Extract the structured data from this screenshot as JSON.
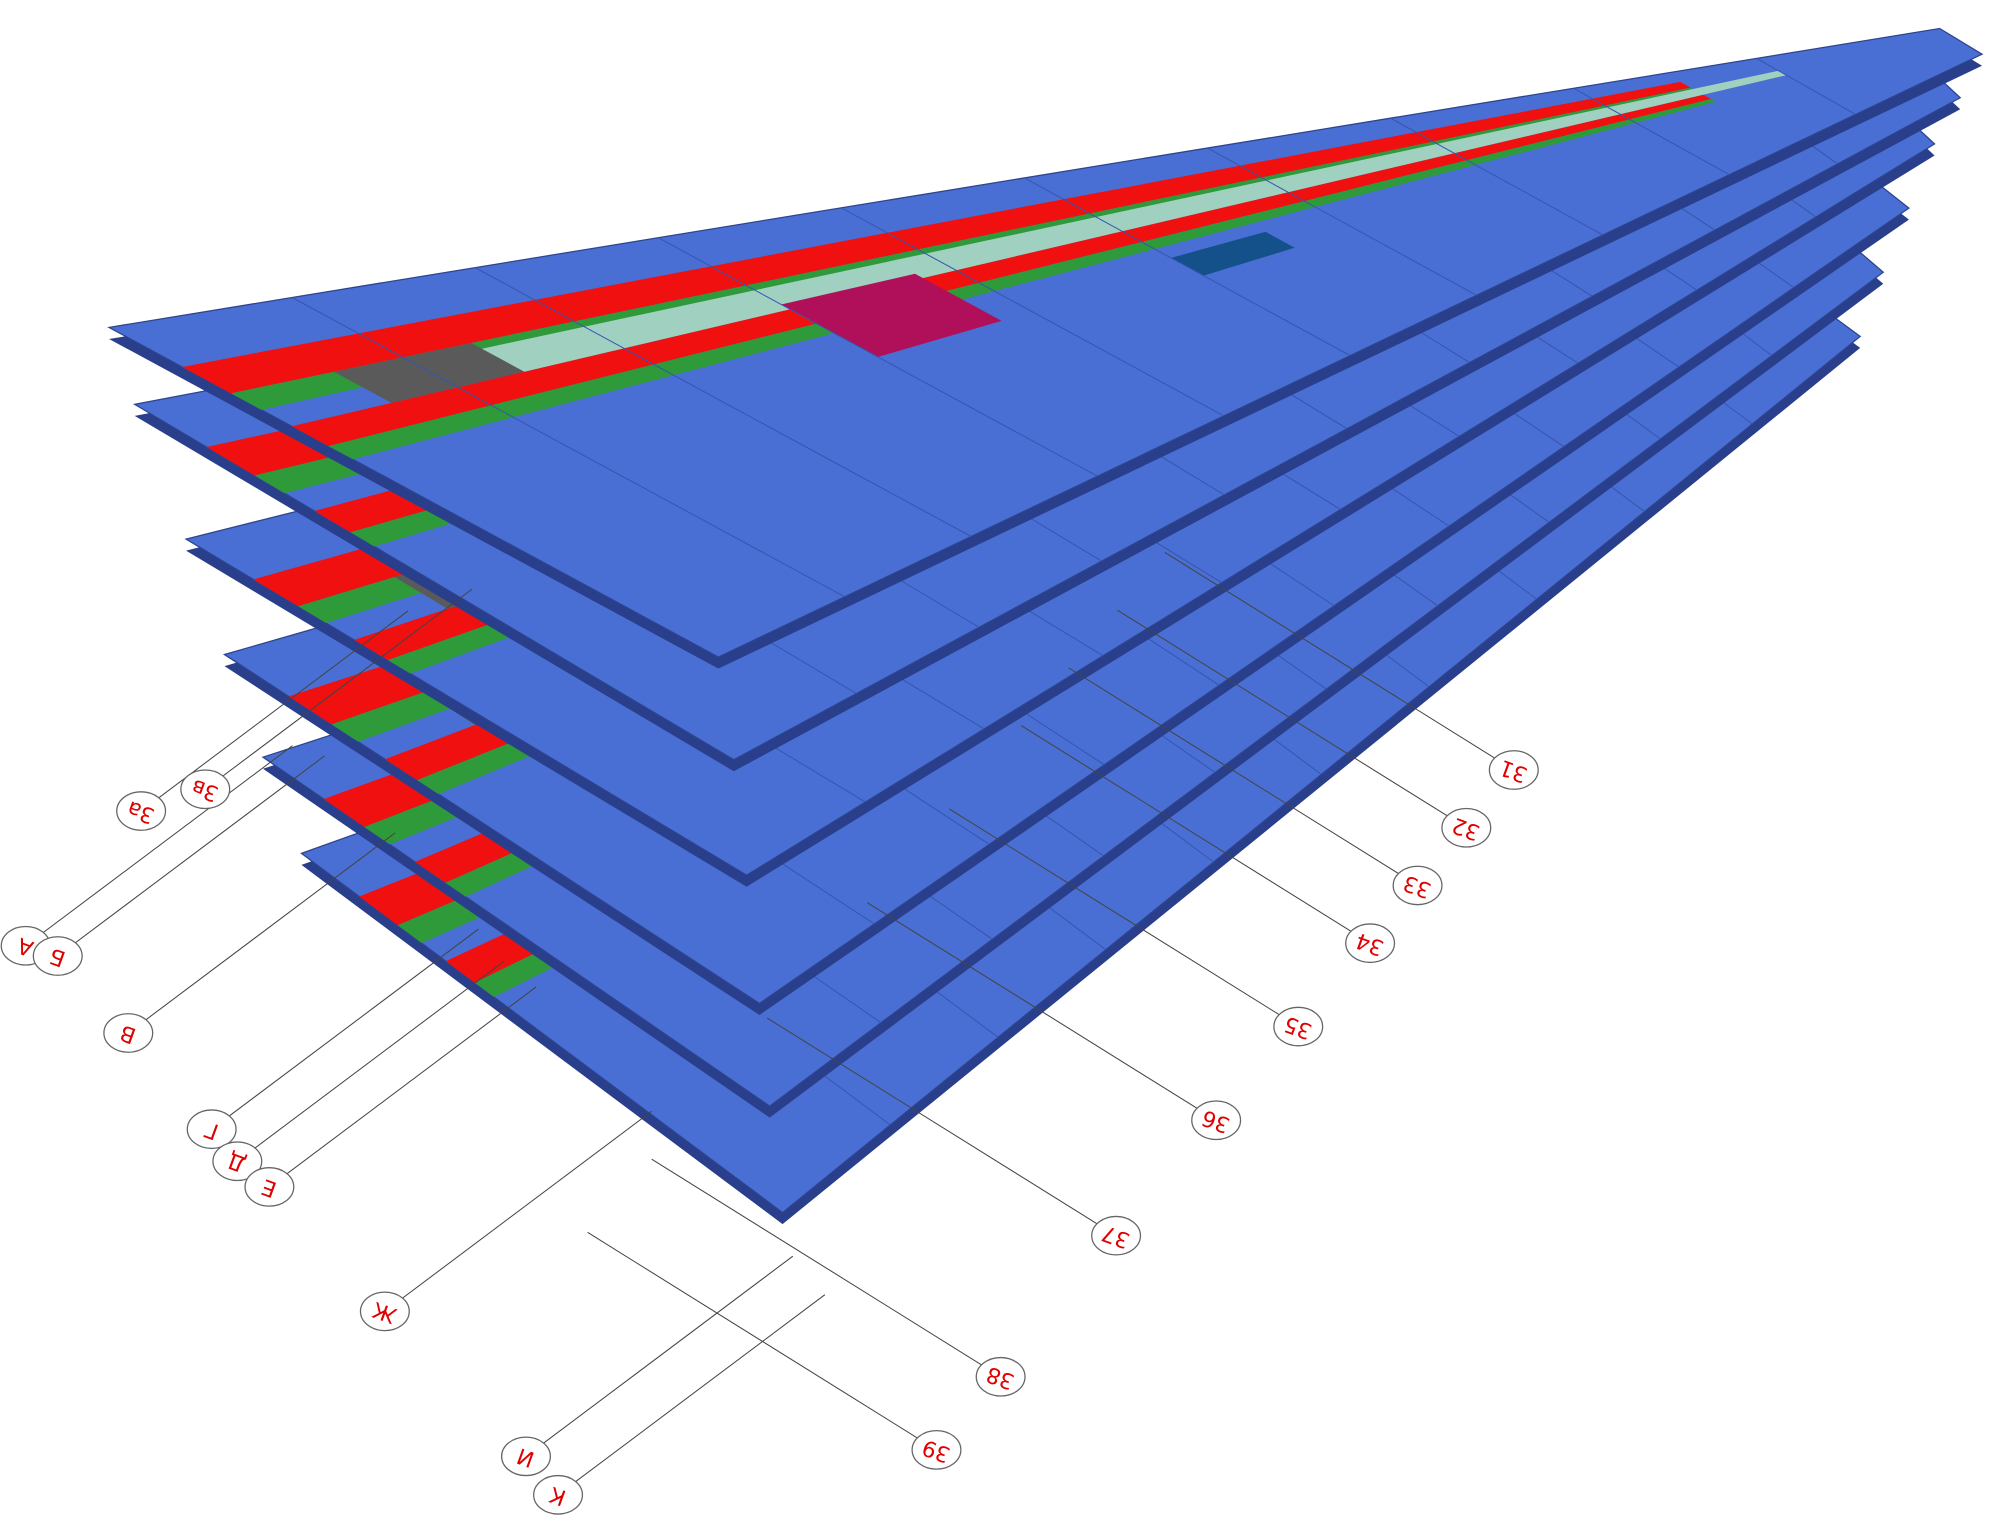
{
  "axes": {
    "letters": [
      "А",
      "Б",
      "В",
      "Г",
      "Д",
      "Е",
      "Ж",
      "И",
      "К",
      "3а",
      "3в"
    ],
    "numbers": [
      "31",
      "32",
      "33",
      "34",
      "35",
      "36",
      "37",
      "38",
      "39"
    ]
  }
}
